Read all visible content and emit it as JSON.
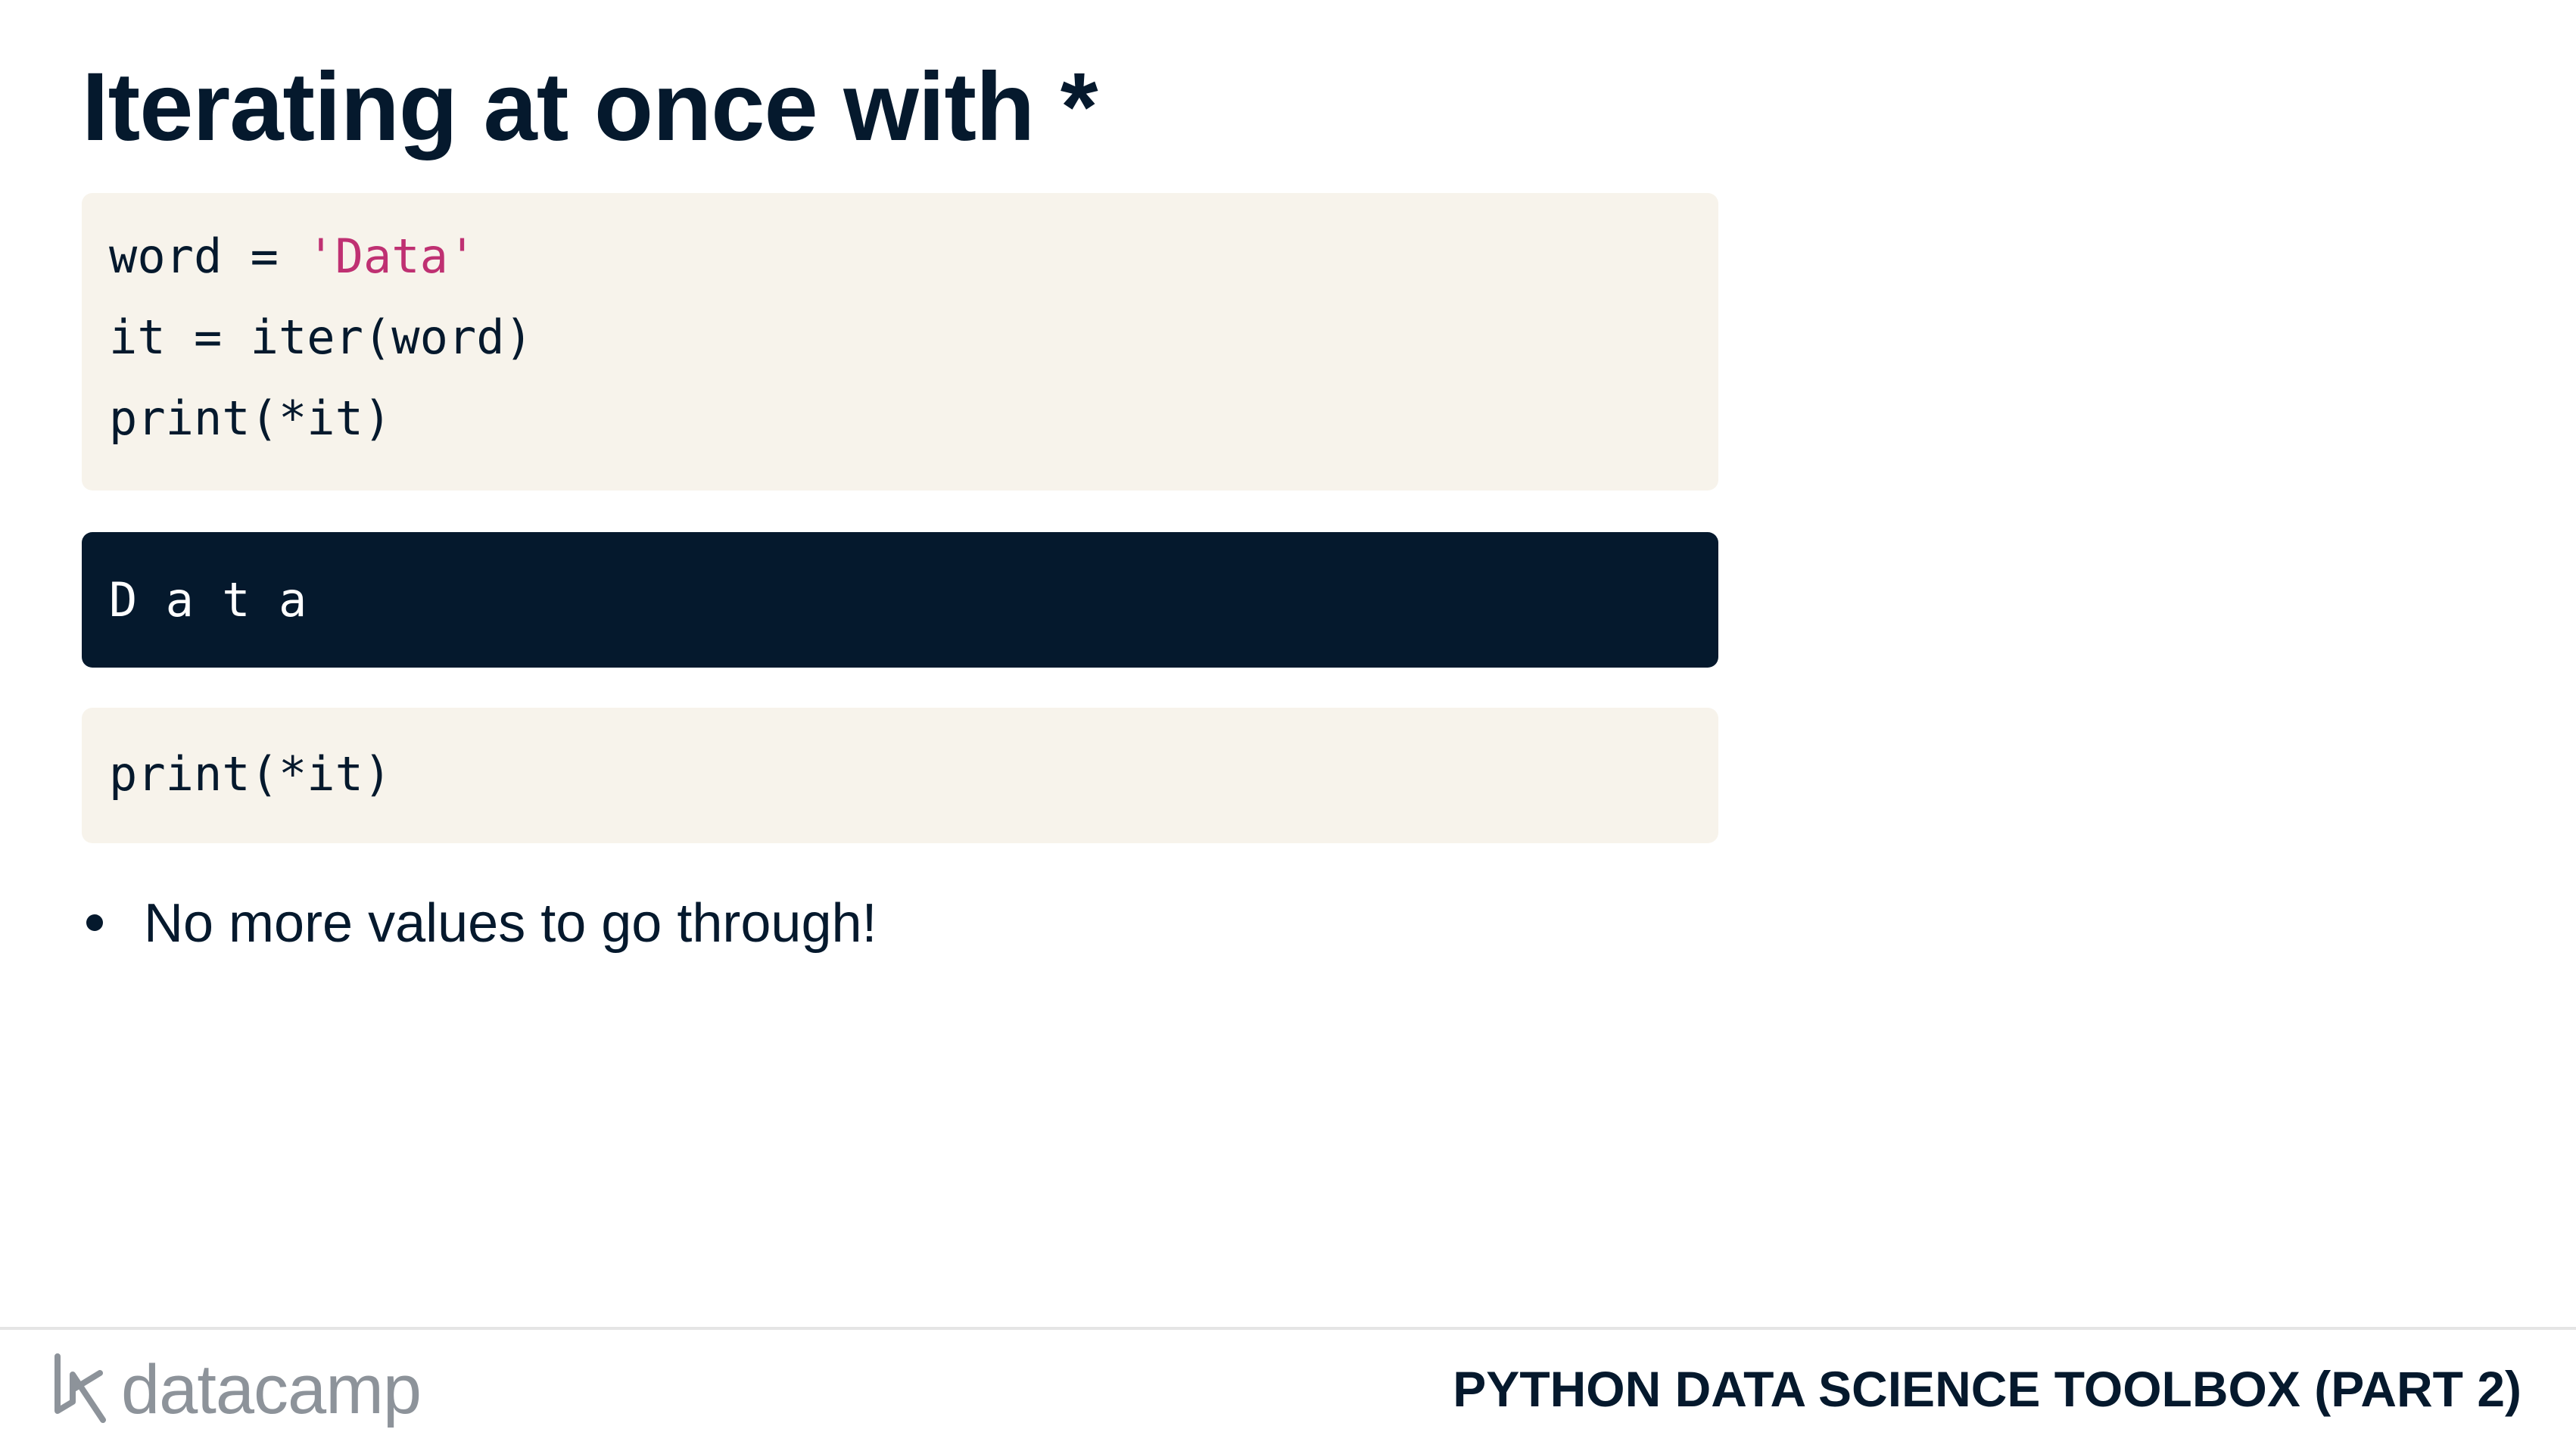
{
  "slide": {
    "title": "Iterating at once with *"
  },
  "code_block_1": {
    "lines": [
      {
        "plain": "word = ",
        "string": "'Data'"
      },
      {
        "plain": "it = iter(word)",
        "string": ""
      },
      {
        "plain": "print(*it)",
        "string": ""
      }
    ]
  },
  "output_block": {
    "text": "D a t a"
  },
  "code_block_2": {
    "lines": [
      "print(*it)"
    ]
  },
  "bullets": [
    "No more values to go through!"
  ],
  "footer": {
    "logo_text": "datacamp",
    "course_title": "PYTHON DATA SCIENCE TOOLBOX (PART 2)"
  },
  "colors": {
    "text": "#05192d",
    "code_bg": "#f7f3eb",
    "output_bg": "#05192d",
    "string": "#bf3072",
    "logo": "#8d939a"
  }
}
